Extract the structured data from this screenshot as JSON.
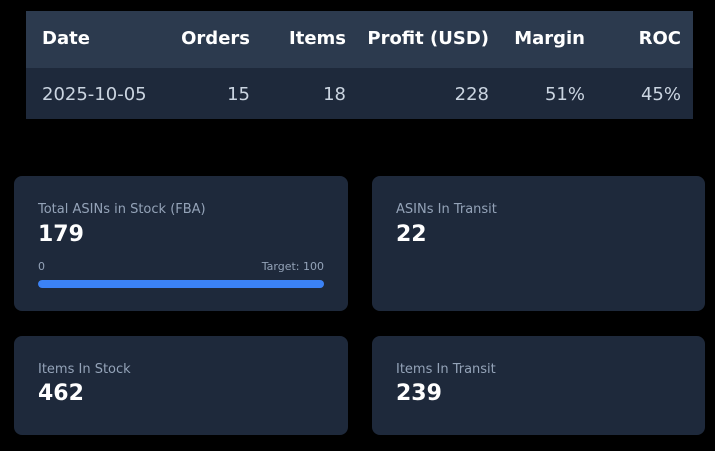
{
  "table": {
    "headers": [
      "Date",
      "Orders",
      "Items",
      "Profit (USD)",
      "Margin",
      "ROC"
    ],
    "rows": [
      [
        "2025-10-05",
        15,
        18,
        228,
        "51%",
        "45%"
      ]
    ]
  },
  "cards": [
    {
      "label": "Total ASINs in Stock (FBA)",
      "value": 179,
      "progress": {
        "min": 0,
        "target": {
          "value": 100,
          "label": "Target: 100"
        }
      }
    },
    {
      "label": "ASINs In Transit",
      "value": 22
    },
    {
      "label": "Items In Stock",
      "value": 462
    },
    {
      "label": "Items In Transit",
      "value": 239
    }
  ]
}
